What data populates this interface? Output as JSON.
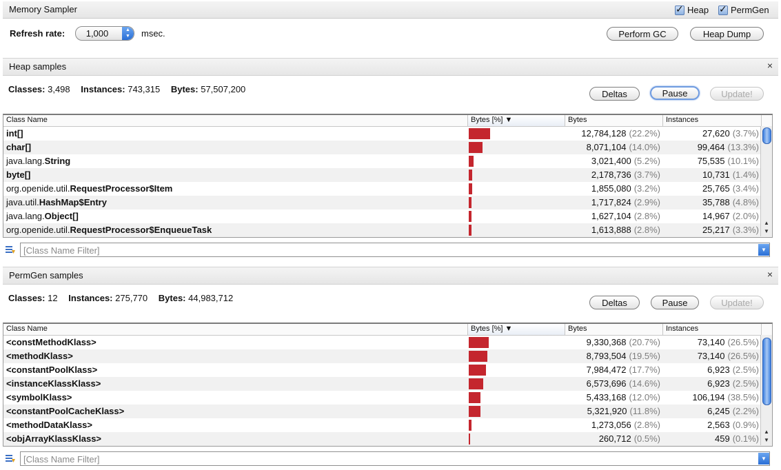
{
  "window": {
    "title": "Memory Sampler",
    "heap_checkbox": "Heap",
    "permgen_checkbox": "PermGen"
  },
  "controls": {
    "refresh_label": "Refresh rate:",
    "refresh_value": "1,000",
    "refresh_unit": "msec.",
    "perform_gc": "Perform GC",
    "heap_dump": "Heap Dump"
  },
  "heap": {
    "title": "Heap samples",
    "close": "×",
    "classes_label": "Classes:",
    "classes_value": "3,498",
    "instances_label": "Instances:",
    "instances_value": "743,315",
    "bytes_label": "Bytes:",
    "bytes_value": "57,507,200",
    "deltas": "Deltas",
    "pause": "Pause",
    "update": "Update!",
    "columns": [
      "Class Name",
      "Bytes [%]",
      "Bytes",
      "Instances"
    ],
    "filter_placeholder": "[Class Name Filter]",
    "rows": [
      {
        "pkg": "",
        "cls": "int[]",
        "bytes_fraction": 0.222,
        "bytes": "12,784,128",
        "bytes_pct": "(22.2%)",
        "instances": "27,620",
        "inst_pct": "(3.7%)"
      },
      {
        "pkg": "",
        "cls": "char[]",
        "bytes_fraction": 0.14,
        "bytes": "8,071,104",
        "bytes_pct": "(14.0%)",
        "instances": "99,464",
        "inst_pct": "(13.3%)"
      },
      {
        "pkg": "java.lang.",
        "cls": "String",
        "bytes_fraction": 0.052,
        "bytes": "3,021,400",
        "bytes_pct": "(5.2%)",
        "instances": "75,535",
        "inst_pct": "(10.1%)"
      },
      {
        "pkg": "",
        "cls": "byte[]",
        "bytes_fraction": 0.037,
        "bytes": "2,178,736",
        "bytes_pct": "(3.7%)",
        "instances": "10,731",
        "inst_pct": "(1.4%)"
      },
      {
        "pkg": "org.openide.util.",
        "cls": "RequestProcessor$Item",
        "bytes_fraction": 0.032,
        "bytes": "1,855,080",
        "bytes_pct": "(3.2%)",
        "instances": "25,765",
        "inst_pct": "(3.4%)"
      },
      {
        "pkg": "java.util.",
        "cls": "HashMap$Entry",
        "bytes_fraction": 0.029,
        "bytes": "1,717,824",
        "bytes_pct": "(2.9%)",
        "instances": "35,788",
        "inst_pct": "(4.8%)"
      },
      {
        "pkg": "java.lang.",
        "cls": "Object[]",
        "bytes_fraction": 0.028,
        "bytes": "1,627,104",
        "bytes_pct": "(2.8%)",
        "instances": "14,967",
        "inst_pct": "(2.0%)"
      },
      {
        "pkg": "org.openide.util.",
        "cls": "RequestProcessor$EnqueueTask",
        "bytes_fraction": 0.028,
        "bytes": "1,613,888",
        "bytes_pct": "(2.8%)",
        "instances": "25,217",
        "inst_pct": "(3.3%)"
      }
    ]
  },
  "permgen": {
    "title": "PermGen samples",
    "close": "×",
    "classes_label": "Classes:",
    "classes_value": "12",
    "instances_label": "Instances:",
    "instances_value": "275,770",
    "bytes_label": "Bytes:",
    "bytes_value": "44,983,712",
    "deltas": "Deltas",
    "pause": "Pause",
    "update": "Update!",
    "columns": [
      "Class Name",
      "Bytes [%]",
      "Bytes",
      "Instances"
    ],
    "filter_placeholder": "[Class Name Filter]",
    "rows": [
      {
        "pkg": "",
        "cls": "<constMethodKlass>",
        "bytes_fraction": 0.207,
        "bytes": "9,330,368",
        "bytes_pct": "(20.7%)",
        "instances": "73,140",
        "inst_pct": "(26.5%)"
      },
      {
        "pkg": "",
        "cls": "<methodKlass>",
        "bytes_fraction": 0.195,
        "bytes": "8,793,504",
        "bytes_pct": "(19.5%)",
        "instances": "73,140",
        "inst_pct": "(26.5%)"
      },
      {
        "pkg": "",
        "cls": "<constantPoolKlass>",
        "bytes_fraction": 0.177,
        "bytes": "7,984,472",
        "bytes_pct": "(17.7%)",
        "instances": "6,923",
        "inst_pct": "(2.5%)"
      },
      {
        "pkg": "",
        "cls": "<instanceKlassKlass>",
        "bytes_fraction": 0.146,
        "bytes": "6,573,696",
        "bytes_pct": "(14.6%)",
        "instances": "6,923",
        "inst_pct": "(2.5%)"
      },
      {
        "pkg": "",
        "cls": "<symbolKlass>",
        "bytes_fraction": 0.12,
        "bytes": "5,433,168",
        "bytes_pct": "(12.0%)",
        "instances": "106,194",
        "inst_pct": "(38.5%)"
      },
      {
        "pkg": "",
        "cls": "<constantPoolCacheKlass>",
        "bytes_fraction": 0.118,
        "bytes": "5,321,920",
        "bytes_pct": "(11.8%)",
        "instances": "6,245",
        "inst_pct": "(2.2%)"
      },
      {
        "pkg": "",
        "cls": "<methodDataKlass>",
        "bytes_fraction": 0.028,
        "bytes": "1,273,056",
        "bytes_pct": "(2.8%)",
        "instances": "2,563",
        "inst_pct": "(0.9%)"
      },
      {
        "pkg": "",
        "cls": "<objArrayKlassKlass>",
        "bytes_fraction": 0.005,
        "bytes": "260,712",
        "bytes_pct": "(0.5%)",
        "instances": "459",
        "inst_pct": "(0.1%)"
      }
    ]
  },
  "colors": {
    "bar": "#c4262e",
    "accent": "#2a6fd6"
  }
}
